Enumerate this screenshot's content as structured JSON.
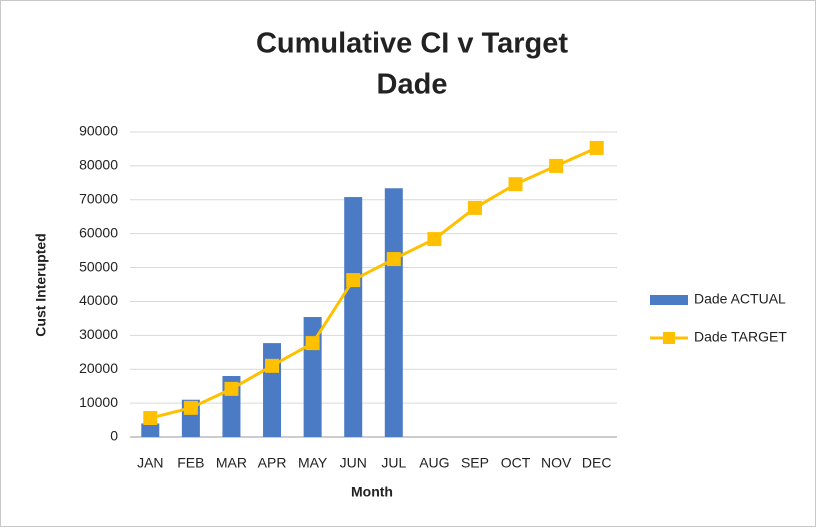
{
  "chart_data": {
    "type": "bar_line",
    "title": "Cumulative CI v Target",
    "subtitle": "Dade",
    "y_label": "Cust Interupted",
    "x_label": "Month",
    "categories": [
      "JAN",
      "FEB",
      "MAR",
      "APR",
      "MAY",
      "JUN",
      "JUL",
      "AUG",
      "SEP",
      "OCT",
      "NOV",
      "DEC"
    ],
    "series": [
      {
        "name": "Dade ACTUAL",
        "type": "bar",
        "color": "#4a7bc4",
        "values": [
          4000,
          11000,
          18000,
          27700,
          35400,
          70800,
          73400,
          null,
          null,
          null,
          null,
          null
        ]
      },
      {
        "name": "Dade TARGET",
        "type": "line",
        "color": "#ffc000",
        "values": [
          5600,
          8600,
          14200,
          21000,
          27700,
          46300,
          52500,
          58400,
          67600,
          74600,
          80000,
          85300
        ]
      }
    ],
    "ylim": [
      0,
      90000
    ],
    "yticks": [
      0,
      10000,
      20000,
      30000,
      40000,
      50000,
      60000,
      70000,
      80000,
      90000
    ],
    "grid": true,
    "legend": "right"
  }
}
